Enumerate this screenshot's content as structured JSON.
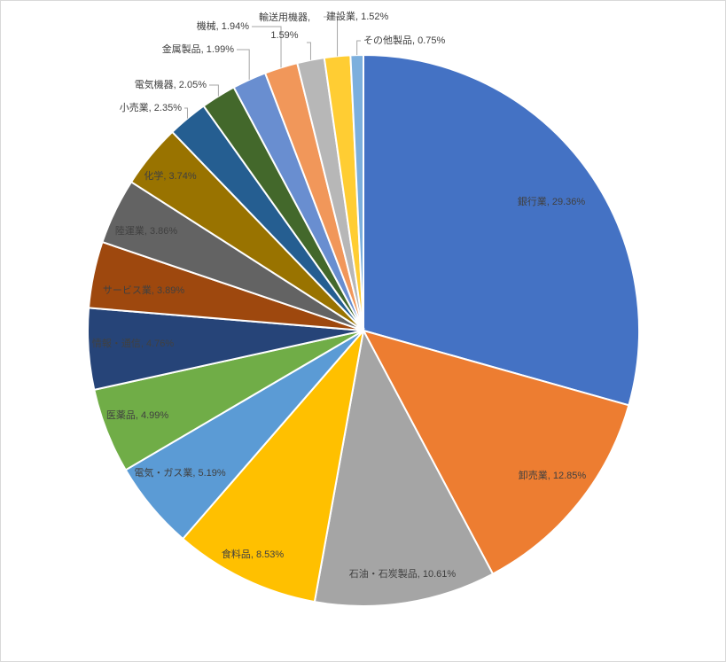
{
  "chart_data": {
    "type": "pie",
    "categories": [
      "銀行業",
      "卸売業",
      "石油・石炭製品",
      "食料品",
      "電気・ガス業",
      "医薬品",
      "情報・通信",
      "サービス業",
      "陸運業",
      "化学",
      "小売業",
      "電気機器",
      "金属製品",
      "機械",
      "輸送用機器",
      "建設業",
      "その他製品"
    ],
    "values": [
      29.36,
      12.85,
      10.61,
      8.53,
      5.19,
      4.99,
      4.76,
      3.89,
      3.86,
      3.74,
      2.35,
      2.05,
      1.99,
      1.94,
      1.59,
      1.52,
      0.75
    ],
    "value_labels": [
      "銀行業, 29.36%",
      "卸売業, 12.85%",
      "石油・石炭製品, 10.61%",
      "食料品, 8.53%",
      "電気・ガス業, 5.19%",
      "医薬品, 4.99%",
      "情報・通信, 4.76%",
      "サービス業, 3.89%",
      "陸運業, 3.86%",
      "化学, 3.74%",
      "小売業, 2.35%",
      "電気機器, 2.05%",
      "金属製品, 1.99%",
      "機械, 1.94%",
      "輸送用機器, 1.59%",
      "建設業, 1.52%",
      "その他製品, 0.75%"
    ],
    "colors": [
      "#4472c4",
      "#ed7d31",
      "#a5a5a5",
      "#ffc000",
      "#5b9bd5",
      "#70ad47",
      "#264478",
      "#9e480e",
      "#636363",
      "#997300",
      "#255e91",
      "#43682b",
      "#698ed0",
      "#f1975a",
      "#b7b7b7",
      "#ffcd33",
      "#7cafdd"
    ]
  }
}
